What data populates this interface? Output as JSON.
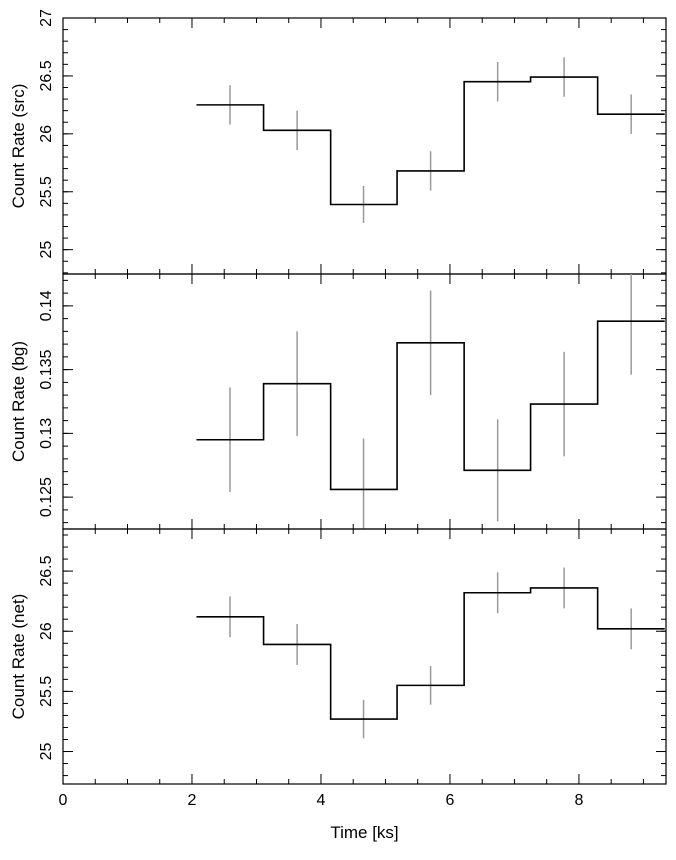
{
  "chart_data": {
    "type": "line",
    "xlabel": "Time [ks]",
    "xlim": [
      0,
      9.35
    ],
    "xticks": [
      0,
      2,
      4,
      6,
      8
    ],
    "bin_edges": [
      2.07,
      3.11,
      4.15,
      5.18,
      6.22,
      7.25,
      8.29,
      9.33
    ],
    "bin_centers": [
      2.59,
      3.63,
      4.66,
      5.7,
      6.74,
      7.77,
      8.81
    ],
    "panels": [
      {
        "id": "src",
        "ylabel": "Count Rate (src)",
        "ylim": [
          24.79,
          27.0
        ],
        "yticks": [
          25.0,
          25.5,
          26.0,
          26.5,
          27.0
        ],
        "yticklabels": [
          "25",
          "25.5",
          "26",
          "26.5",
          "27"
        ],
        "values": [
          26.25,
          26.03,
          25.39,
          25.68,
          26.45,
          26.49,
          26.17
        ],
        "errors": [
          0.17,
          0.17,
          0.16,
          0.17,
          0.17,
          0.17,
          0.17
        ]
      },
      {
        "id": "bg",
        "ylabel": "Count Rate (bg)",
        "ylim": [
          0.1225,
          0.1425
        ],
        "yticks": [
          0.125,
          0.13,
          0.135,
          0.14
        ],
        "yticklabels": [
          "0.125",
          "0.13",
          "0.135",
          "0.14"
        ],
        "values": [
          0.1295,
          0.1339,
          0.1256,
          0.1371,
          0.1271,
          0.1323,
          0.1388
        ],
        "errors": [
          0.0041,
          0.0041,
          0.004,
          0.0041,
          0.004,
          0.0041,
          0.0042
        ]
      },
      {
        "id": "net",
        "ylabel": "Count Rate (net)",
        "ylim": [
          24.73,
          26.85
        ],
        "yticks": [
          25.0,
          25.5,
          26.0,
          26.5
        ],
        "yticklabels": [
          "25",
          "25.5",
          "26",
          "26.5"
        ],
        "values": [
          26.12,
          25.89,
          25.27,
          25.55,
          26.32,
          26.36,
          26.02
        ],
        "errors": [
          0.17,
          0.17,
          0.16,
          0.16,
          0.17,
          0.17,
          0.17
        ]
      }
    ]
  },
  "colors": {
    "line": "#000000",
    "errorbar": "#999999",
    "frame": "#000000"
  }
}
